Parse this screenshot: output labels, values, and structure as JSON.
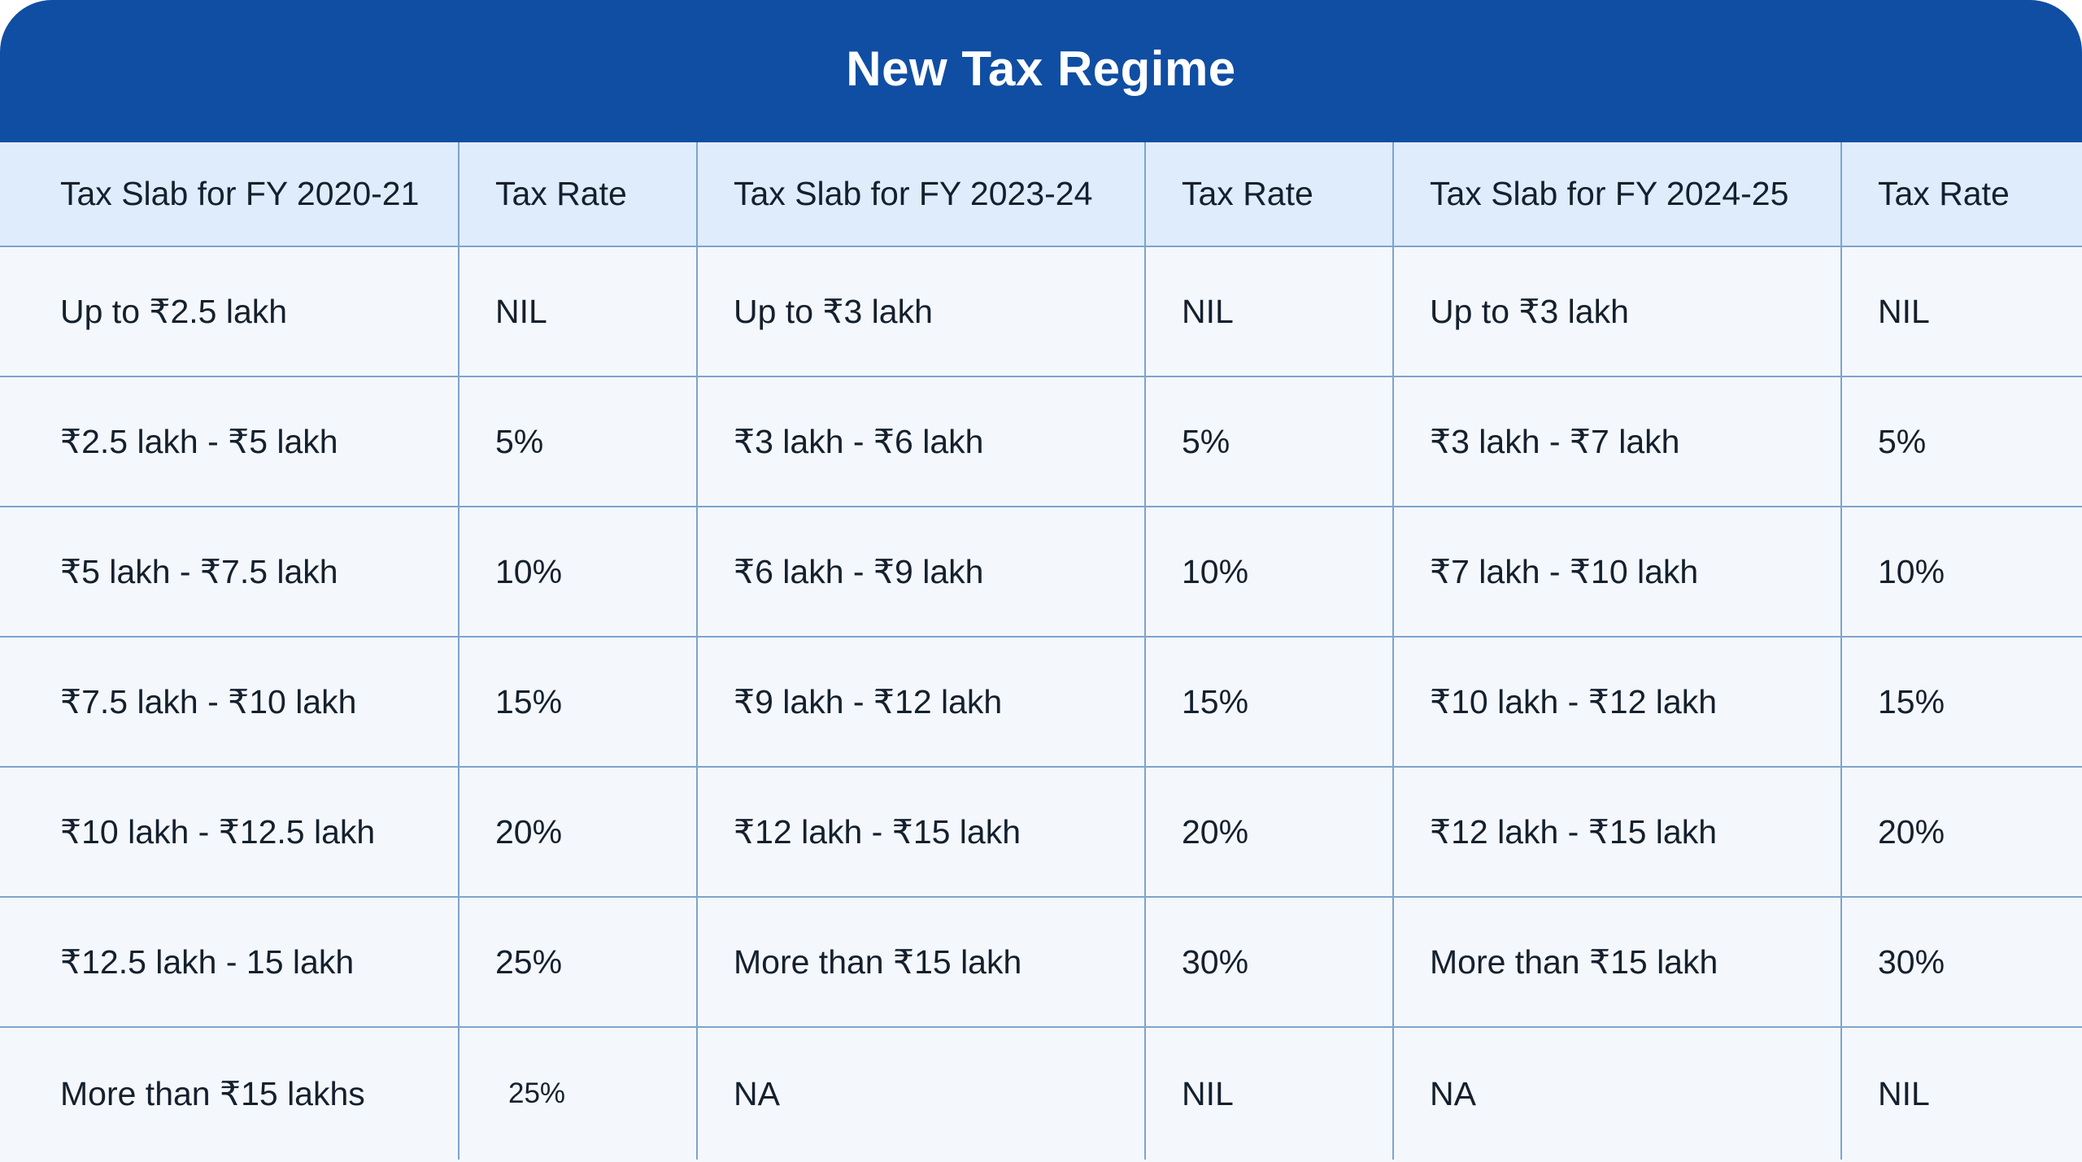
{
  "title": "New Tax Regime",
  "table": {
    "headers": [
      "Tax Slab for FY 2020-21",
      "Tax Rate",
      "Tax Slab for FY 2023-24",
      "Tax Rate",
      "Tax Slab for FY 2024-25",
      "Tax Rate"
    ],
    "rows": [
      [
        "Up to ₹2.5 lakh",
        "NIL",
        "Up to ₹3 lakh",
        "NIL",
        "Up to ₹3 lakh",
        "NIL"
      ],
      [
        "₹2.5 lakh - ₹5 lakh",
        "5%",
        "₹3 lakh - ₹6 lakh",
        "5%",
        "₹3 lakh - ₹7 lakh",
        "5%"
      ],
      [
        "₹5 lakh - ₹7.5 lakh",
        "10%",
        "₹6 lakh - ₹9 lakh",
        "10%",
        "₹7 lakh - ₹10 lakh",
        "10%"
      ],
      [
        "₹7.5 lakh - ₹10 lakh",
        "15%",
        "₹9 lakh - ₹12 lakh",
        "15%",
        "₹10 lakh - ₹12 lakh",
        "15%"
      ],
      [
        "₹10 lakh - ₹12.5 lakh",
        "20%",
        "₹12 lakh - ₹15 lakh",
        "20%",
        "₹12 lakh - ₹15 lakh",
        "20%"
      ],
      [
        "₹12.5 lakh - 15 lakh",
        "25%",
        "More than ₹15 lakh",
        "30%",
        "More than ₹15 lakh",
        "30%"
      ],
      [
        "More than ₹15 lakhs",
        "25%",
        "NA",
        "NIL",
        "NA",
        "NIL"
      ]
    ]
  },
  "colors": {
    "title_bar": "#0f4ea3",
    "header_row": "#dfecfb",
    "body_row": "#f4f8fd",
    "grid_line": "#7ea4cc",
    "text": "#15202e"
  }
}
